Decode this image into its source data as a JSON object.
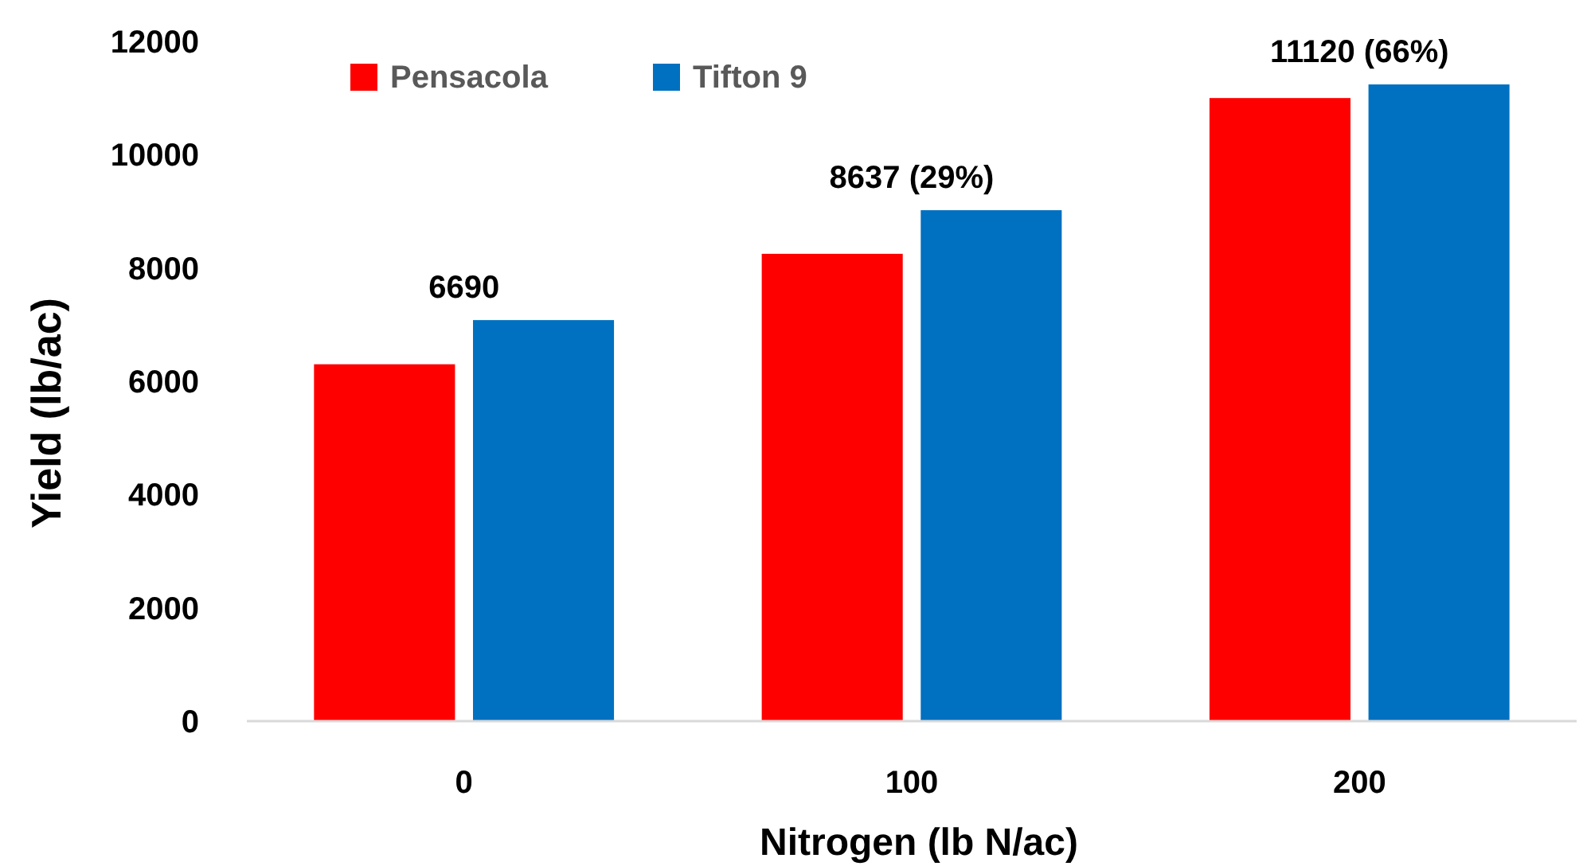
{
  "chart_data": {
    "type": "bar",
    "xlabel": "Nitrogen (lb N/ac)",
    "ylabel": "Yield (lb/ac)",
    "categories": [
      "0",
      "100",
      "200"
    ],
    "series": [
      {
        "name": "Pensacola",
        "color": "#ff0000",
        "values": [
          6300,
          8250,
          11000
        ]
      },
      {
        "name": "Tifton 9",
        "color": "#0070c0",
        "values": [
          7080,
          9020,
          11240
        ]
      }
    ],
    "ylim": [
      0,
      12000
    ],
    "yticks": [
      0,
      2000,
      4000,
      6000,
      8000,
      10000,
      12000
    ],
    "grid": false,
    "legend": "top left",
    "annotations": [
      "6690",
      "8637 (29%)",
      "11120 (66%)"
    ]
  }
}
